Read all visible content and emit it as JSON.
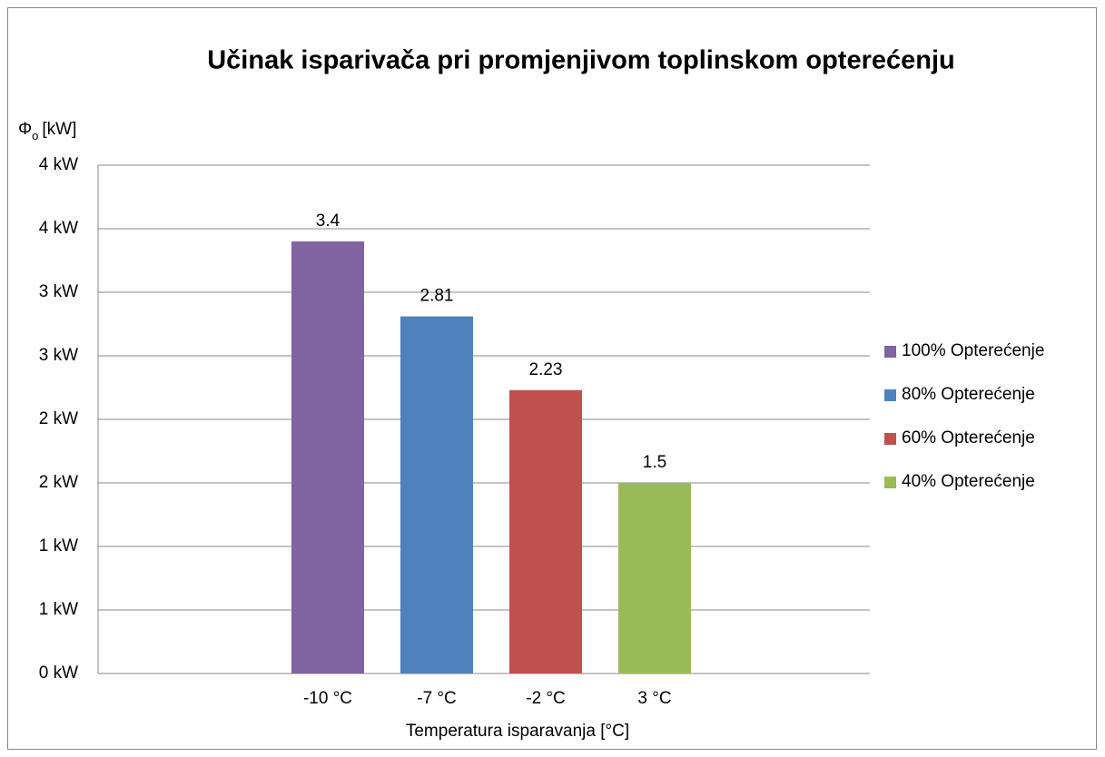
{
  "chart_data": {
    "type": "bar",
    "title": "Učinak isparivača pri promjenjivom toplinskom opterećenju",
    "y_label": {
      "symbol": "Φ",
      "subscript": "o",
      "unit": "[kW]"
    },
    "x_label": "Temperatura isparavanja [°C]",
    "categories": [
      "-10 °C",
      "-7 °C",
      "-2 °C",
      "3 °C"
    ],
    "series": [
      {
        "name": "100% Opterećenje",
        "color": "#8064a2",
        "values": [
          3.4,
          null,
          null,
          null
        ]
      },
      {
        "name": "80% Opterećenje",
        "color": "#4f81bd",
        "values": [
          null,
          2.81,
          null,
          null
        ]
      },
      {
        "name": "60% Opterećenje",
        "color": "#c0504d",
        "values": [
          null,
          null,
          2.23,
          null
        ]
      },
      {
        "name": "40% Opterećenje",
        "color": "#9bbb59",
        "values": [
          null,
          null,
          null,
          1.5
        ]
      }
    ],
    "ylim": [
      0,
      4
    ],
    "yticks": [
      {
        "value": 0,
        "label": "0 kW"
      },
      {
        "value": 0.5,
        "label": "1 kW"
      },
      {
        "value": 1,
        "label": "1 kW"
      },
      {
        "value": 1.5,
        "label": "2 kW"
      },
      {
        "value": 2,
        "label": "2 kW"
      },
      {
        "value": 2.5,
        "label": "3 kW"
      },
      {
        "value": 3,
        "label": "3 kW"
      },
      {
        "value": 3.5,
        "label": "4 kW"
      },
      {
        "value": 4,
        "label": "4 kW"
      }
    ],
    "grid": true,
    "legend": "right"
  }
}
